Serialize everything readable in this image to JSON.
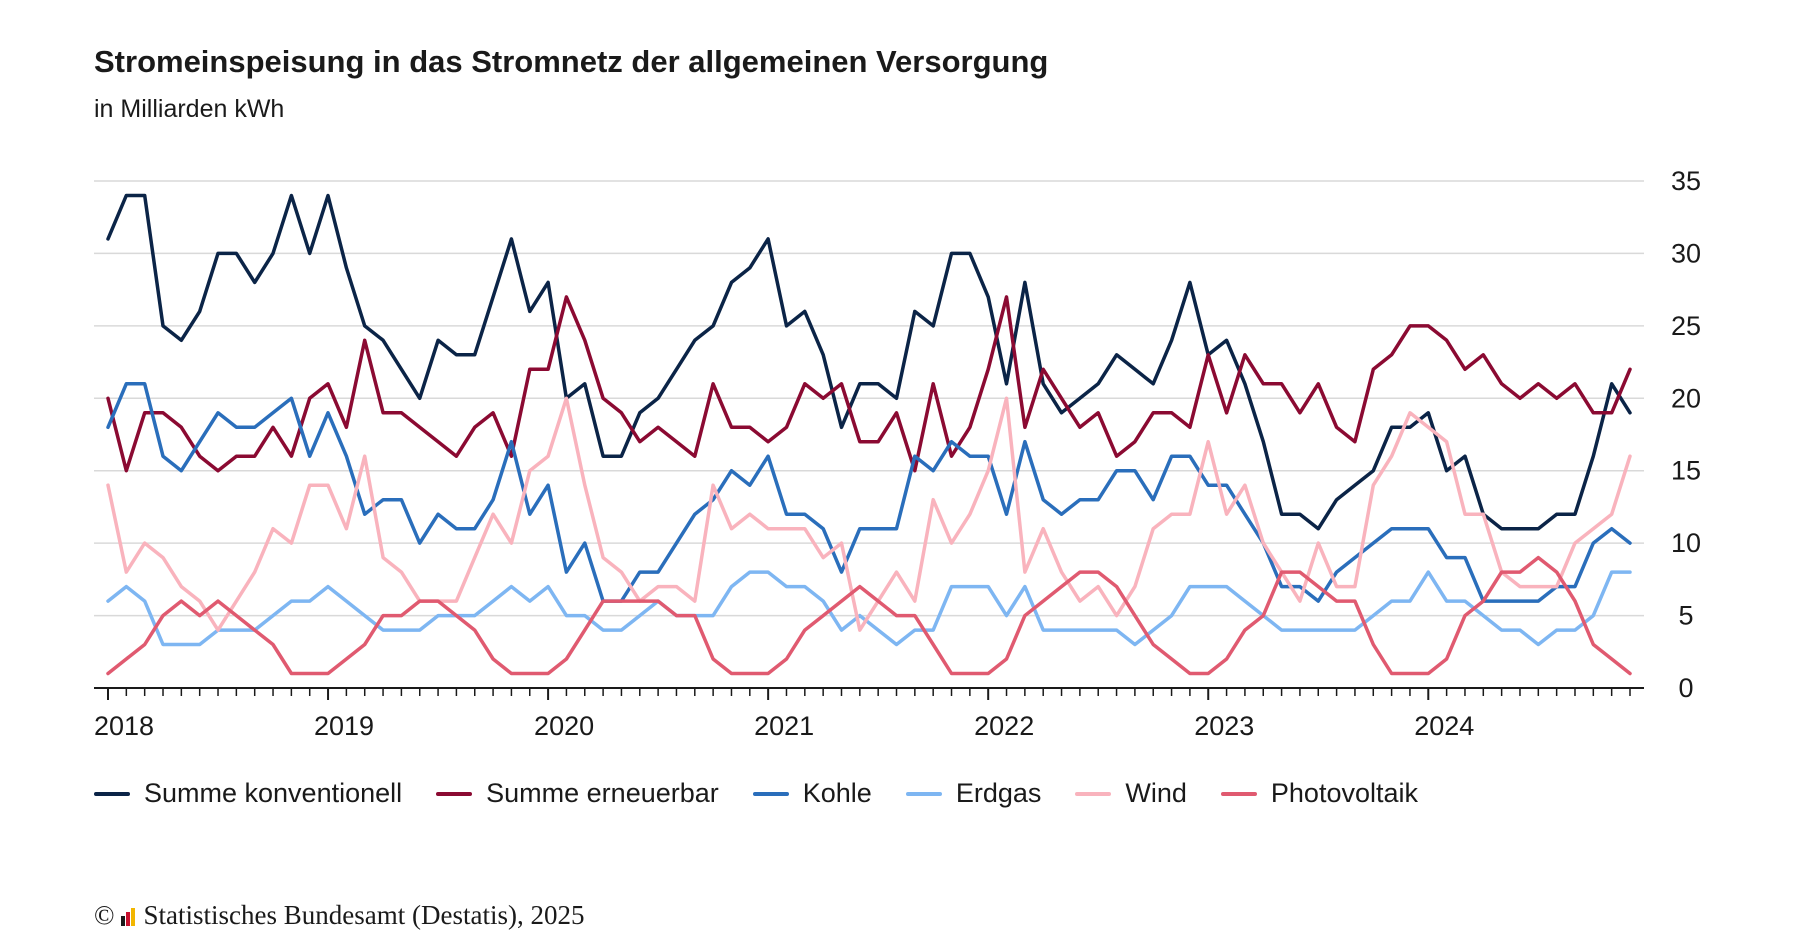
{
  "chart_data": {
    "type": "line",
    "title": "Stromeinspeisung in das Stromnetz der allgemeinen Versorgung",
    "subtitle": "in Milliarden kWh",
    "x_start": "2018-01",
    "x_end": "2024-12",
    "x_tick_labels": [
      "2018",
      "2019",
      "2020",
      "2021",
      "2022",
      "2023",
      "2024"
    ],
    "ylim": [
      0,
      35
    ],
    "y_ticks": [
      0,
      5,
      10,
      15,
      20,
      25,
      30,
      35
    ],
    "y_tick_labels": [
      "0",
      "5",
      "10",
      "15",
      "20",
      "25",
      "30",
      "35"
    ],
    "grid": true,
    "legend_position": "bottom",
    "series": [
      {
        "name": "Summe konventionell",
        "color": "#0b2447",
        "values": [
          31,
          34,
          34,
          25,
          24,
          26,
          30,
          30,
          28,
          30,
          34,
          30,
          34,
          29,
          25,
          24,
          22,
          20,
          24,
          23,
          23,
          27,
          31,
          26,
          28,
          20,
          21,
          16,
          16,
          19,
          20,
          22,
          24,
          25,
          28,
          29,
          31,
          25,
          26,
          23,
          18,
          21,
          21,
          20,
          26,
          25,
          30,
          30,
          27,
          21,
          28,
          21,
          19,
          20,
          21,
          23,
          22,
          21,
          24,
          28,
          23,
          24,
          21,
          17,
          12,
          12,
          11,
          13,
          14,
          15,
          18,
          18,
          19,
          15,
          16,
          12,
          11,
          11,
          11,
          12,
          12,
          16,
          21,
          19
        ]
      },
      {
        "name": "Summe erneuerbar",
        "color": "#8b0a32",
        "values": [
          20,
          15,
          19,
          19,
          18,
          16,
          15,
          16,
          16,
          18,
          16,
          20,
          21,
          18,
          24,
          19,
          19,
          18,
          17,
          16,
          18,
          19,
          16,
          22,
          22,
          27,
          24,
          20,
          19,
          17,
          18,
          17,
          16,
          21,
          18,
          18,
          17,
          18,
          21,
          20,
          21,
          17,
          17,
          19,
          15,
          21,
          16,
          18,
          22,
          27,
          18,
          22,
          20,
          18,
          19,
          16,
          17,
          19,
          19,
          18,
          23,
          19,
          23,
          21,
          21,
          19,
          21,
          18,
          17,
          22,
          23,
          25,
          25,
          24,
          22,
          23,
          21,
          20,
          21,
          20,
          21,
          19,
          19,
          22
        ]
      },
      {
        "name": "Kohle",
        "color": "#2a6ebb",
        "values": [
          18,
          21,
          21,
          16,
          15,
          17,
          19,
          18,
          18,
          19,
          20,
          16,
          19,
          16,
          12,
          13,
          13,
          10,
          12,
          11,
          11,
          13,
          17,
          12,
          14,
          8,
          10,
          6,
          6,
          8,
          8,
          10,
          12,
          13,
          15,
          14,
          16,
          12,
          12,
          11,
          8,
          11,
          11,
          11,
          16,
          15,
          17,
          16,
          16,
          12,
          17,
          13,
          12,
          13,
          13,
          15,
          15,
          13,
          16,
          16,
          14,
          14,
          12,
          10,
          7,
          7,
          6,
          8,
          9,
          10,
          11,
          11,
          11,
          9,
          9,
          6,
          6,
          6,
          6,
          7,
          7,
          10,
          11,
          10
        ]
      },
      {
        "name": "Erdgas",
        "color": "#7eb6f2",
        "values": [
          6,
          7,
          6,
          3,
          3,
          3,
          4,
          4,
          4,
          5,
          6,
          6,
          7,
          6,
          5,
          4,
          4,
          4,
          5,
          5,
          5,
          6,
          7,
          6,
          7,
          5,
          5,
          4,
          4,
          5,
          6,
          5,
          5,
          5,
          7,
          8,
          8,
          7,
          7,
          6,
          4,
          5,
          4,
          3,
          4,
          4,
          7,
          7,
          7,
          5,
          7,
          4,
          4,
          4,
          4,
          4,
          3,
          4,
          5,
          7,
          7,
          7,
          6,
          5,
          4,
          4,
          4,
          4,
          4,
          5,
          6,
          6,
          8,
          6,
          6,
          5,
          4,
          4,
          3,
          4,
          4,
          5,
          8,
          8
        ]
      },
      {
        "name": "Wind",
        "color": "#f9b3bd",
        "values": [
          14,
          8,
          10,
          9,
          7,
          6,
          4,
          6,
          8,
          11,
          10,
          14,
          14,
          11,
          16,
          9,
          8,
          6,
          6,
          6,
          9,
          12,
          10,
          15,
          16,
          20,
          14,
          9,
          8,
          6,
          7,
          7,
          6,
          14,
          11,
          12,
          11,
          11,
          11,
          9,
          10,
          4,
          6,
          8,
          6,
          13,
          10,
          12,
          15,
          20,
          8,
          11,
          8,
          6,
          7,
          5,
          7,
          11,
          12,
          12,
          17,
          12,
          14,
          10,
          8,
          6,
          10,
          7,
          7,
          14,
          16,
          19,
          18,
          17,
          12,
          12,
          8,
          7,
          7,
          7,
          10,
          11,
          12,
          16
        ]
      },
      {
        "name": "Photovoltaik",
        "color": "#e05a70",
        "values": [
          1,
          2,
          3,
          5,
          6,
          5,
          6,
          5,
          4,
          3,
          1,
          1,
          1,
          2,
          3,
          5,
          5,
          6,
          6,
          5,
          4,
          2,
          1,
          1,
          1,
          2,
          4,
          6,
          6,
          6,
          6,
          5,
          5,
          2,
          1,
          1,
          1,
          2,
          4,
          5,
          6,
          7,
          6,
          5,
          5,
          3,
          1,
          1,
          1,
          2,
          5,
          6,
          7,
          8,
          8,
          7,
          5,
          3,
          2,
          1,
          1,
          2,
          4,
          5,
          8,
          8,
          7,
          6,
          6,
          3,
          1,
          1,
          1,
          2,
          5,
          6,
          8,
          8,
          9,
          8,
          6,
          3,
          2,
          1
        ]
      }
    ]
  },
  "source": {
    "copyright": "©",
    "text": "Statistisches Bundesamt (Destatis), 2025"
  }
}
